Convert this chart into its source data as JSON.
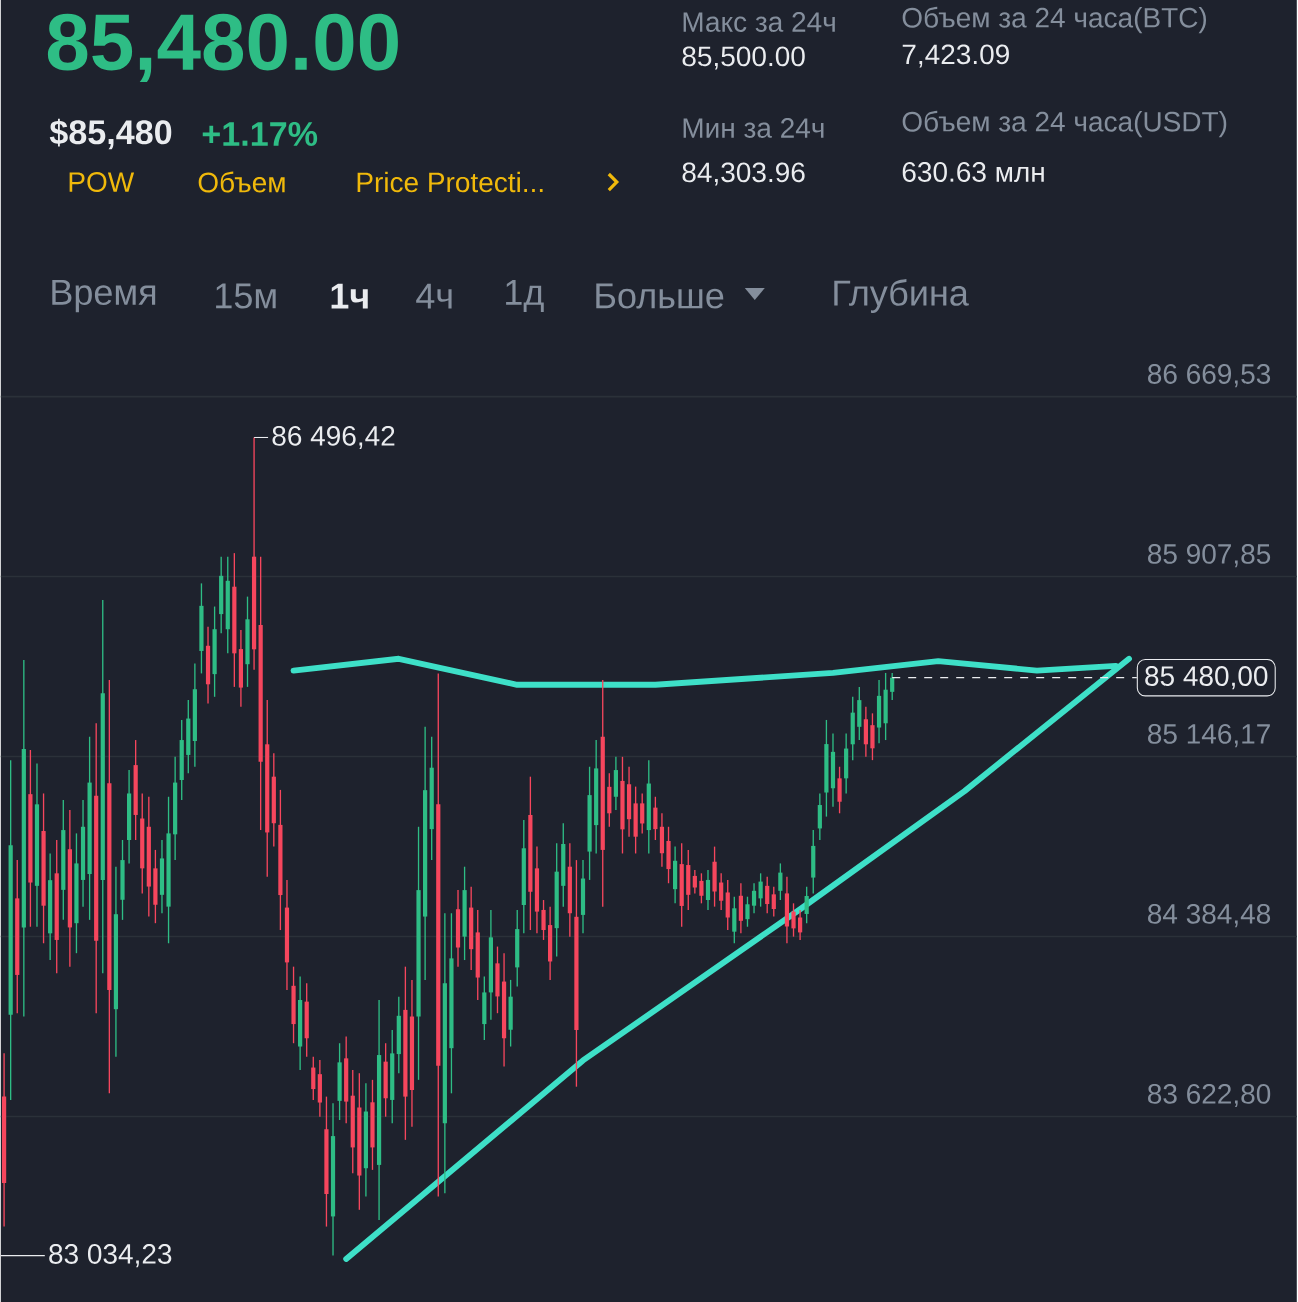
{
  "chart_data": {
    "type": "candlestick",
    "categories": [
      null,
      null,
      null,
      null,
      null,
      null,
      null,
      null,
      null,
      null,
      null,
      null,
      null,
      null,
      null,
      null,
      null,
      null,
      null,
      null,
      null,
      null,
      null,
      null,
      null,
      null,
      null,
      null,
      null,
      null,
      null,
      null,
      null,
      null,
      null,
      null,
      null,
      null,
      null,
      null,
      null,
      null,
      null,
      null,
      null,
      null,
      null,
      null,
      null,
      null,
      null,
      null,
      null,
      null,
      null,
      null,
      null,
      null,
      null,
      null,
      null,
      null,
      null,
      null,
      null,
      null,
      null,
      null,
      null,
      null,
      null,
      null,
      null,
      null,
      null,
      null,
      null,
      null,
      null,
      null,
      null,
      null,
      null,
      null,
      null,
      null,
      null,
      null,
      null,
      null,
      null,
      null,
      null,
      null,
      null,
      null,
      null,
      null,
      null,
      null,
      null,
      null,
      null,
      null,
      null,
      null,
      null,
      null,
      null,
      null,
      null,
      null,
      null,
      null,
      null,
      null,
      null,
      null,
      null,
      null,
      null,
      null,
      null,
      null,
      null,
      null,
      null,
      null,
      null,
      null,
      null,
      null,
      null,
      null,
      null,
      null,
      null,
      null,
      null,
      null,
      null,
      null,
      null,
      null,
      null,
      null,
      null,
      null,
      null,
      null,
      null,
      null,
      null,
      null,
      null,
      null,
      null,
      null,
      null,
      null,
      null,
      null,
      null,
      null,
      null,
      null,
      null,
      null,
      null,
      null,
      null,
      null,
      null,
      null,
      null,
      null,
      null,
      null,
      null,
      null,
      null,
      null,
      null,
      null,
      null,
      null,
      null,
      null,
      null,
      null,
      null,
      null,
      null,
      null,
      null,
      null,
      null
    ],
    "ohlc": [
      [
        83707,
        83891,
        83157,
        83341
      ],
      [
        84053,
        85131,
        83693,
        84771
      ],
      [
        84546,
        84708,
        84060,
        84222
      ],
      [
        84423,
        85555,
        84046,
        85178
      ],
      [
        84987,
        85174,
        84426,
        84613
      ],
      [
        84599,
        85117,
        84426,
        84944
      ],
      [
        84831,
        84990,
        84356,
        84515
      ],
      [
        84398,
        84736,
        84285,
        84623
      ],
      [
        84652,
        84793,
        84229,
        84370
      ],
      [
        84582,
        84962,
        84455,
        84835
      ],
      [
        84754,
        84920,
        84257,
        84423
      ],
      [
        84441,
        84821,
        84314,
        84694
      ],
      [
        84624,
        84962,
        84511,
        84849
      ],
      [
        84649,
        85230,
        84455,
        85036
      ],
      [
        84980,
        85287,
        84060,
        84367
      ],
      [
        84624,
        85809,
        84229,
        85414
      ],
      [
        85033,
        85470,
        83721,
        84158
      ],
      [
        84077,
        84680,
        83876,
        84479
      ],
      [
        84540,
        84793,
        84455,
        84708
      ],
      [
        84793,
        85089,
        84694,
        84990
      ],
      [
        85110,
        85216,
        84793,
        84899
      ],
      [
        84884,
        84990,
        84567,
        84673
      ],
      [
        84849,
        84976,
        84469,
        84596
      ],
      [
        84673,
        84751,
        84441,
        84519
      ],
      [
        84561,
        84793,
        84483,
        84715
      ],
      [
        84511,
        84976,
        84356,
        84821
      ],
      [
        84817,
        85145,
        84708,
        85036
      ],
      [
        85047,
        85301,
        84962,
        85216
      ],
      [
        85153,
        85385,
        85075,
        85307
      ],
      [
        85212,
        85540,
        85103,
        85431
      ],
      [
        85593,
        85879,
        85498,
        85784
      ],
      [
        85615,
        85696,
        85371,
        85452
      ],
      [
        85495,
        85781,
        85399,
        85685
      ],
      [
        85749,
        85992,
        85668,
        85911
      ],
      [
        85685,
        85992,
        85583,
        85890
      ],
      [
        85865,
        86007,
        85441,
        85583
      ],
      [
        85601,
        85682,
        85357,
        85438
      ],
      [
        85537,
        85823,
        85441,
        85727
      ],
      [
        85992,
        86496.42,
        85513,
        85600
      ],
      [
        85703,
        85992,
        84835,
        85124
      ],
      [
        85198,
        85385,
        84638,
        84825
      ],
      [
        85061,
        85160,
        84765,
        84864
      ],
      [
        84857,
        85005,
        84412,
        84560
      ],
      [
        84507,
        84624,
        84158,
        84275
      ],
      [
        84176,
        84257,
        83933,
        84014
      ],
      [
        83919,
        84215,
        83820,
        84116
      ],
      [
        84109,
        84187,
        83876,
        83954
      ],
      [
        83830,
        83876,
        83693,
        83739
      ],
      [
        83802,
        83862,
        83622,
        83682
      ],
      [
        83569,
        83707,
        83157,
        83295
      ],
      [
        83200,
        83679,
        83034.23,
        83540
      ],
      [
        83689,
        83933,
        83608,
        83852
      ],
      [
        83869,
        83961,
        83594,
        83686
      ],
      [
        83711,
        83820,
        83383,
        83492
      ],
      [
        83661,
        83806,
        83228,
        83373
      ],
      [
        83404,
        83764,
        83284,
        83644
      ],
      [
        83683,
        83778,
        83397,
        83492
      ],
      [
        83418,
        84116,
        83185,
        83883
      ],
      [
        83855,
        83933,
        83622,
        83700
      ],
      [
        83693,
        83989,
        83594,
        83890
      ],
      [
        83887,
        84130,
        83806,
        84049
      ],
      [
        84074,
        84257,
        83524,
        83707
      ],
      [
        84046,
        84201,
        83580,
        83735
      ],
      [
        84046,
        84849,
        83778,
        84581
      ],
      [
        84469,
        85272,
        84201,
        85004
      ],
      [
        84839,
        85230,
        84708,
        85099
      ],
      [
        84944,
        85498,
        83284,
        83838
      ],
      [
        83594,
        84483,
        83298,
        84187
      ],
      [
        83912,
        84483,
        83721,
        84292
      ],
      [
        84500,
        84581,
        84257,
        84338
      ],
      [
        84384,
        84680,
        84285,
        84581
      ],
      [
        84507,
        84595,
        84243,
        84331
      ],
      [
        84402,
        84497,
        84116,
        84211
      ],
      [
        84014,
        84215,
        83947,
        84148
      ],
      [
        84148,
        84497,
        84032,
        84381
      ],
      [
        84271,
        84342,
        84060,
        84131
      ],
      [
        84194,
        84314,
        83834,
        83954
      ],
      [
        83990,
        84201,
        83919,
        84130
      ],
      [
        84254,
        84497,
        84173,
        84416
      ],
      [
        84518,
        84878,
        84398,
        84758
      ],
      [
        84899,
        85061,
        84412,
        84574
      ],
      [
        84673,
        84765,
        84398,
        84490
      ],
      [
        84497,
        84539,
        84370,
        84412
      ],
      [
        84433,
        84511,
        84201,
        84279
      ],
      [
        84420,
        84779,
        84300,
        84659
      ],
      [
        84599,
        84864,
        84511,
        84776
      ],
      [
        84680,
        84779,
        84384,
        84483
      ],
      [
        84468,
        84708,
        83749,
        83989
      ],
      [
        84476,
        84708,
        84398,
        84630
      ],
      [
        84744,
        85103,
        84624,
        84983
      ],
      [
        84856,
        85216,
        84736,
        85096
      ],
      [
        85230,
        85470,
        84511,
        84751
      ],
      [
        85018,
        85075,
        84849,
        84906
      ],
      [
        84976,
        85145,
        84920,
        85089
      ],
      [
        85043,
        85145,
        84736,
        84838
      ],
      [
        85029,
        85103,
        84807,
        84881
      ],
      [
        84948,
        85019,
        84736,
        84807
      ],
      [
        84948,
        84990,
        84821,
        84863
      ],
      [
        84835,
        85131,
        84736,
        85032
      ],
      [
        84930,
        84976,
        84793,
        84839
      ],
      [
        84849,
        84906,
        84680,
        84737
      ],
      [
        84789,
        84849,
        84610,
        84670
      ],
      [
        84585,
        84765,
        84525,
        84705
      ],
      [
        84691,
        84779,
        84426,
        84514
      ],
      [
        84687,
        84751,
        84497,
        84561
      ],
      [
        84641,
        84666,
        84567,
        84592
      ],
      [
        84620,
        84652,
        84525,
        84557
      ],
      [
        84539,
        84666,
        84497,
        84624
      ],
      [
        84701,
        84765,
        84511,
        84575
      ],
      [
        84613,
        84652,
        84497,
        84536
      ],
      [
        84571,
        84624,
        84412,
        84465
      ],
      [
        84405,
        84553,
        84356,
        84504
      ],
      [
        84557,
        84610,
        84398,
        84451
      ],
      [
        84458,
        84553,
        84426,
        84521
      ],
      [
        84515,
        84610,
        84483,
        84578
      ],
      [
        84546,
        84652,
        84511,
        84617
      ],
      [
        84599,
        84638,
        84483,
        84522
      ],
      [
        84563,
        84595,
        84469,
        84501
      ],
      [
        84578,
        84694,
        84539,
        84655
      ],
      [
        84567,
        84638,
        84356,
        84427
      ],
      [
        84490,
        84525,
        84384,
        84419
      ],
      [
        84465,
        84497,
        84370,
        84402
      ],
      [
        84480,
        84595,
        84441,
        84556
      ],
      [
        84634,
        84835,
        84567,
        84768
      ],
      [
        84842,
        84990,
        84793,
        84941
      ],
      [
        84994,
        85301,
        84892,
        85199
      ],
      [
        85012,
        85244,
        84934,
        85166
      ],
      [
        85054,
        85103,
        84906,
        84955
      ],
      [
        85054,
        85244,
        84990,
        85180
      ],
      [
        85198,
        85399,
        85131,
        85332
      ],
      [
        85272,
        85441,
        85216,
        85385
      ],
      [
        85304,
        85357,
        85145,
        85198
      ],
      [
        85279,
        85329,
        85131,
        85181
      ],
      [
        85269,
        85470,
        85202,
        85403
      ],
      [
        85287,
        85500,
        85216,
        85429
      ],
      [
        85420,
        85500,
        85385,
        85480
      ],
      null,
      null,
      null,
      null,
      null,
      null,
      null,
      null,
      null,
      null,
      null,
      null,
      null,
      null,
      null,
      null,
      null,
      null,
      null,
      null,
      null,
      null,
      null,
      null,
      null,
      null,
      null,
      null,
      null,
      null,
      null,
      null,
      null,
      null,
      null,
      null,
      null,
      null,
      null,
      null,
      null,
      null,
      null,
      null,
      null,
      null,
      null,
      null,
      null,
      null,
      null,
      null,
      null,
      null,
      null,
      null,
      null,
      null,
      null,
      null,
      null
    ],
    "colors": [
      "#f6465d",
      "#2ebd85",
      "#f6465d",
      "#2ebd85",
      "#f6465d",
      "#2ebd85",
      "#f6465d",
      "#2ebd85",
      "#f6465d",
      "#2ebd85",
      "#f6465d",
      "#2ebd85",
      "#2ebd85",
      "#2ebd85",
      "#f6465d",
      "#2ebd85",
      "#f6465d",
      "#2ebd85",
      "#2ebd85",
      "#2ebd85",
      "#f6465d",
      "#f6465d",
      "#f6465d",
      "#f6465d",
      "#2ebd85",
      "#2ebd85",
      "#2ebd85",
      "#2ebd85",
      "#2ebd85",
      "#2ebd85",
      "#2ebd85",
      "#f6465d",
      "#2ebd85",
      "#2ebd85",
      "#2ebd85",
      "#f6465d",
      "#f6465d",
      "#2ebd85",
      "#f6465d",
      "#f6465d",
      "#f6465d",
      "#f6465d",
      "#f6465d",
      "#f6465d",
      "#f6465d",
      "#2ebd85",
      "#f6465d",
      "#f6465d",
      "#f6465d",
      "#f6465d",
      "#2ebd85",
      "#2ebd85",
      "#f6465d",
      "#f6465d",
      "#f6465d",
      "#2ebd85",
      "#f6465d",
      "#2ebd85",
      "#f6465d",
      "#2ebd85",
      "#2ebd85",
      "#f6465d",
      "#f6465d",
      "#2ebd85",
      "#2ebd85",
      "#2ebd85",
      "#f6465d",
      "#2ebd85",
      "#2ebd85",
      "#f6465d",
      "#2ebd85",
      "#f6465d",
      "#f6465d",
      "#2ebd85",
      "#2ebd85",
      "#f6465d",
      "#f6465d",
      "#2ebd85",
      "#2ebd85",
      "#2ebd85",
      "#f6465d",
      "#f6465d",
      "#f6465d",
      "#f6465d",
      "#2ebd85",
      "#2ebd85",
      "#f6465d",
      "#f6465d",
      "#2ebd85",
      "#2ebd85",
      "#2ebd85",
      "#f6465d",
      "#f6465d",
      "#2ebd85",
      "#f6465d",
      "#f6465d",
      "#f6465d",
      "#f6465d",
      "#2ebd85",
      "#f6465d",
      "#f6465d",
      "#f6465d",
      "#2ebd85",
      "#f6465d",
      "#f6465d",
      "#f6465d",
      "#f6465d",
      "#2ebd85",
      "#f6465d",
      "#f6465d",
      "#f6465d",
      "#2ebd85",
      "#f6465d",
      "#2ebd85",
      "#2ebd85",
      "#2ebd85",
      "#f6465d",
      "#f6465d",
      "#2ebd85",
      "#f6465d",
      "#f6465d",
      "#f6465d",
      "#2ebd85",
      "#2ebd85",
      "#2ebd85",
      "#2ebd85",
      "#2ebd85",
      "#f6465d",
      "#2ebd85",
      "#2ebd85",
      "#2ebd85",
      "#f6465d",
      "#f6465d",
      "#2ebd85",
      "#2ebd85",
      "#2ebd85",
      null,
      null,
      null,
      null,
      null,
      null,
      null,
      null,
      null,
      null,
      null,
      null,
      null,
      null,
      null,
      null,
      null,
      null,
      null,
      null,
      null,
      null,
      null,
      null,
      null,
      null,
      null,
      null,
      null,
      null,
      null,
      null,
      null,
      null,
      null,
      null,
      null,
      null,
      null,
      null,
      null,
      null,
      null,
      null,
      null,
      null,
      null,
      null,
      null,
      null,
      null,
      null,
      null,
      null,
      null,
      null,
      null,
      null,
      null,
      null,
      null
    ],
    "series": [
      {
        "type": "line",
        "color": "#3ee0c8",
        "values": [
          null,
          null,
          null,
          null,
          null,
          null,
          null,
          null,
          null,
          null,
          null,
          null,
          null,
          null,
          null,
          null,
          null,
          null,
          null,
          null,
          null,
          null,
          null,
          null,
          null,
          null,
          null,
          null,
          null,
          null,
          null,
          null,
          null,
          null,
          null,
          null,
          null,
          null,
          null,
          null,
          null,
          null,
          null,
          null,
          85510,
          null,
          null,
          null,
          null,
          null,
          null,
          null,
          null,
          null,
          null,
          null,
          null,
          null,
          null,
          null,
          85560,
          null,
          null,
          null,
          null,
          null,
          null,
          null,
          null,
          null,
          null,
          null,
          null,
          null,
          null,
          null,
          null,
          null,
          85450,
          null,
          null,
          null,
          null,
          null,
          null,
          null,
          null,
          null,
          null,
          null,
          null,
          null,
          null,
          null,
          null,
          null,
          null,
          null,
          null,
          85450,
          null,
          null,
          null,
          null,
          null,
          null,
          null,
          null,
          null,
          null,
          null,
          null,
          null,
          null,
          null,
          null,
          null,
          null,
          null,
          null,
          null,
          null,
          null,
          null,
          null,
          null,
          85500,
          null,
          null,
          null,
          null,
          null,
          null,
          null,
          null,
          null,
          null,
          null,
          null,
          null,
          null,
          null,
          85550,
          null,
          null,
          null,
          null,
          null,
          null,
          null,
          null,
          null,
          null,
          null,
          null,
          null,
          null,
          85510,
          null,
          null,
          null,
          null,
          null,
          null,
          null,
          null,
          null,
          null,
          null,
          85530,
          null,
          null,
          null,
          null,
          null,
          null,
          null,
          null,
          null,
          null,
          null,
          null,
          null,
          null,
          null,
          null,
          null,
          null,
          null,
          null,
          null,
          null,
          null,
          null,
          null,
          null,
          null
        ]
      },
      {
        "type": "line",
        "color": "#3ee0c8",
        "values": [
          null,
          null,
          null,
          null,
          null,
          null,
          null,
          null,
          null,
          null,
          null,
          null,
          null,
          null,
          null,
          null,
          null,
          null,
          null,
          null,
          null,
          null,
          null,
          null,
          null,
          null,
          null,
          null,
          null,
          null,
          null,
          null,
          null,
          null,
          null,
          null,
          null,
          null,
          null,
          null,
          null,
          null,
          null,
          null,
          null,
          null,
          null,
          null,
          null,
          null,
          null,
          null,
          83020,
          null,
          null,
          null,
          null,
          null,
          null,
          null,
          null,
          null,
          null,
          null,
          null,
          null,
          null,
          null,
          null,
          null,
          null,
          null,
          null,
          null,
          null,
          null,
          null,
          null,
          null,
          null,
          null,
          null,
          null,
          null,
          null,
          null,
          null,
          null,
          83860,
          null,
          null,
          null,
          null,
          null,
          null,
          null,
          null,
          null,
          null,
          null,
          null,
          null,
          null,
          null,
          null,
          null,
          null,
          null,
          null,
          null,
          null,
          null,
          null,
          null,
          null,
          null,
          null,
          null,
          null,
          null,
          null,
          84500,
          null,
          null,
          null,
          null,
          null,
          null,
          null,
          null,
          null,
          null,
          null,
          null,
          null,
          null,
          null,
          null,
          null,
          null,
          null,
          null,
          null,
          null,
          null,
          null,
          85000,
          null,
          null,
          null,
          null,
          null,
          null,
          null,
          null,
          null,
          null,
          null,
          null,
          null,
          null,
          null,
          null,
          null,
          null,
          null,
          null,
          null,
          null,
          null,
          null,
          85560,
          null,
          null,
          null,
          null,
          null,
          null,
          null,
          null,
          null,
          null,
          null,
          null,
          null,
          null,
          null,
          null,
          null,
          null,
          null,
          null,
          null,
          null,
          null,
          null,
          null
        ]
      }
    ],
    "ylim": [
      82931,
      86909
    ],
    "yticks": [
      {
        "value": 83622.8,
        "label": "83 622,80"
      },
      {
        "value": 84384.48,
        "label": "84 384,48"
      },
      {
        "value": 85146.17,
        "label": "85 146,17"
      },
      {
        "value": 85907.85,
        "label": "85 907,85"
      },
      {
        "value": 86669.53,
        "label": "86 669,53"
      }
    ],
    "grid": "y",
    "tick_labels": "y",
    "ref_lines": [
      {
        "axis": "y",
        "value": 85480,
        "label": "85 480,00",
        "line_style": "dashed"
      }
    ],
    "annotations": [
      "85,480.00",
      "$85,480",
      "+1.17%",
      "POW",
      "Объем",
      "Price Protecti...",
      "Макс за 24ч",
      "85,500.00",
      "Мин за 24ч",
      "84,303.96",
      "Объем за 24 часа(BTC)",
      "7,423.09",
      "Объем за 24 часа(USDT)",
      "630.63 млн",
      "Время",
      "15м",
      "1ч",
      "4ч",
      "1д",
      "Больше",
      "Глубина",
      "86 496,42",
      "83 034,23"
    ]
  }
}
